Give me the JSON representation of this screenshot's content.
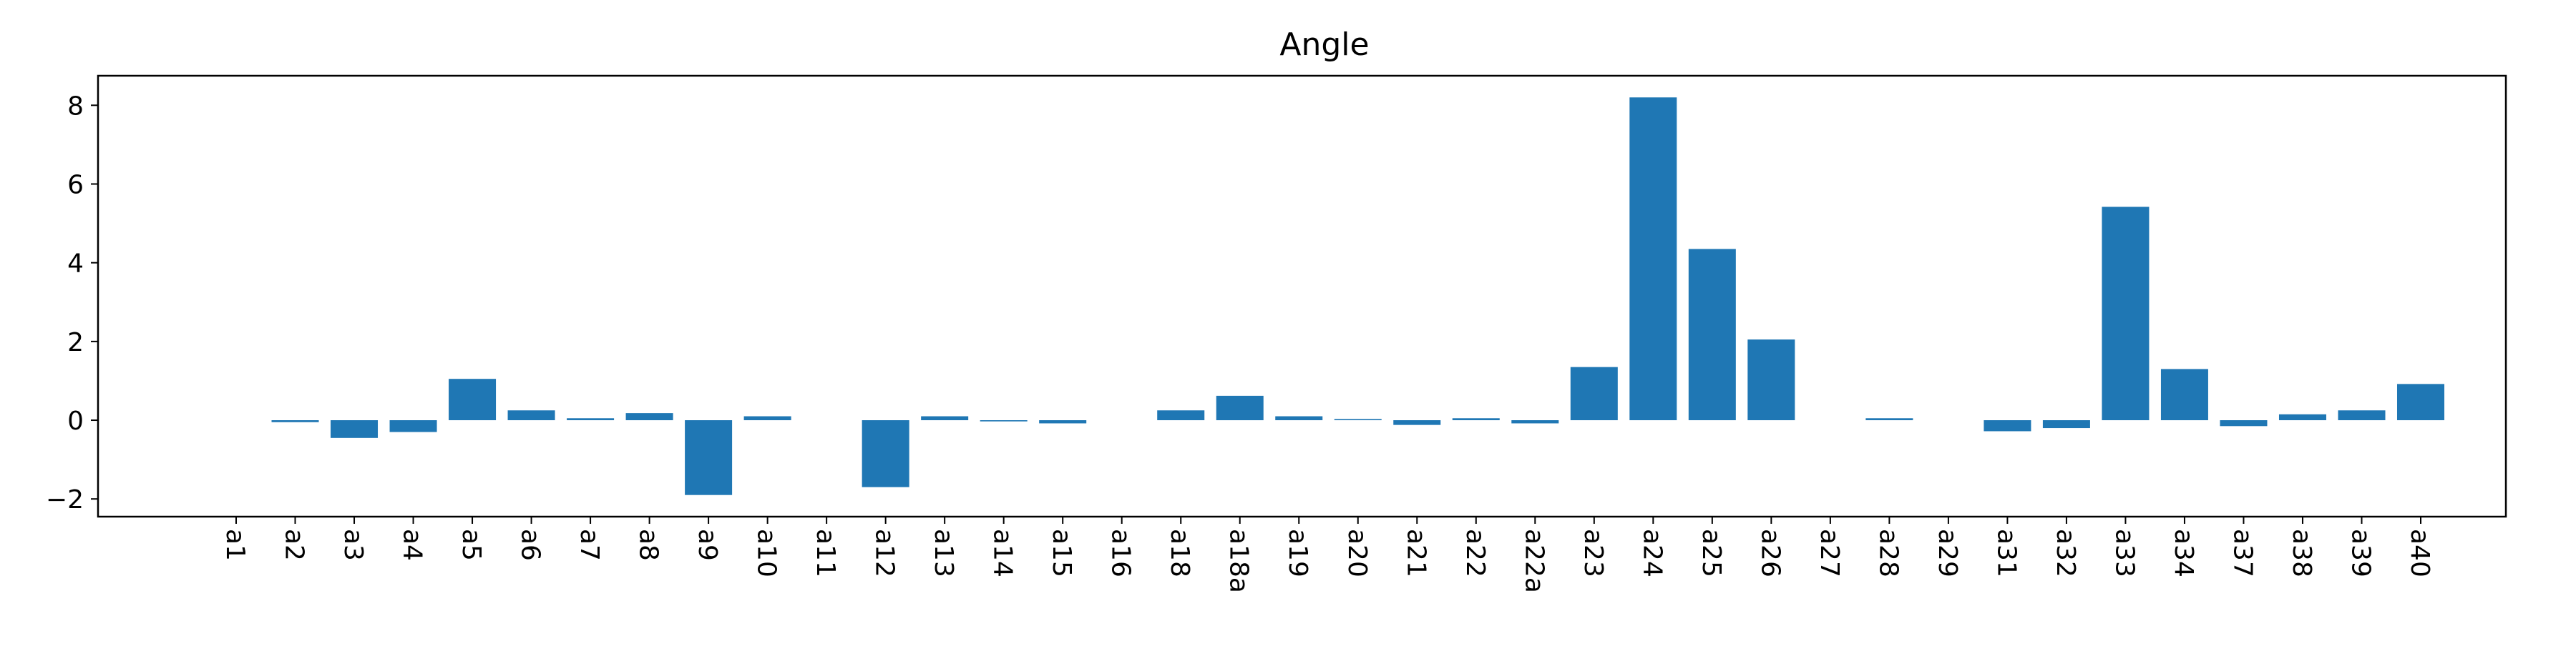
{
  "chart_data": {
    "type": "bar",
    "title": "Angle",
    "xlabel": "",
    "ylabel": "",
    "categories": [
      "a1",
      "a2",
      "a3",
      "a4",
      "a5",
      "a6",
      "a7",
      "a8",
      "a9",
      "a10",
      "a11",
      "a12",
      "a13",
      "a14",
      "a15",
      "a16",
      "a18",
      "a18a",
      "a19",
      "a20",
      "a21",
      "a22",
      "a22a",
      "a23",
      "a24",
      "a25",
      "a26",
      "a27",
      "a28",
      "a29",
      "a31",
      "a32",
      "a33",
      "a34",
      "a37",
      "a38",
      "a39",
      "a40"
    ],
    "values": [
      0,
      -0.05,
      -0.45,
      -0.3,
      1.05,
      0.25,
      0.05,
      0.18,
      -1.9,
      0.1,
      0,
      -1.7,
      0.1,
      -0.03,
      -0.08,
      0,
      0.25,
      0.62,
      0.1,
      0.03,
      -0.12,
      0.05,
      -0.08,
      1.35,
      8.2,
      4.35,
      2.05,
      0,
      0.05,
      0,
      -0.28,
      -0.2,
      5.42,
      1.3,
      -0.15,
      0.15,
      0.25,
      0.92
    ],
    "ylim": [
      -2.45,
      8.75
    ],
    "yticks": [
      -2,
      0,
      2,
      4,
      6,
      8
    ],
    "grid": false,
    "legend": "none",
    "bar_color": "#1f77b4"
  }
}
